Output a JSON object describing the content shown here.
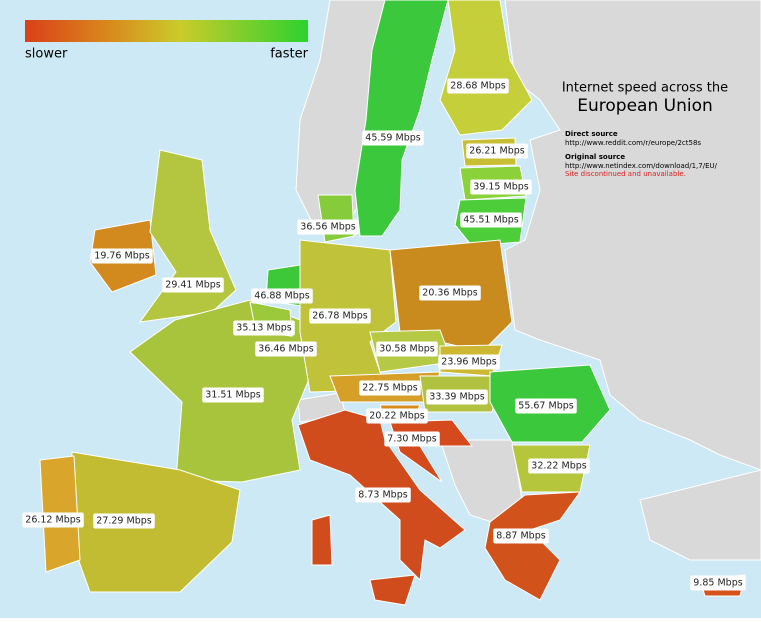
{
  "legend": {
    "low": "slower",
    "high": "faster"
  },
  "title": {
    "line1": "Internet speed across the",
    "line2": "European Union"
  },
  "sources": {
    "direct_heading": "Direct source",
    "direct_url": "http://www.reddit.com/r/europe/2ct58s",
    "original_heading": "Original source",
    "original_url": "http://www.netindex.com/download/1,7/EU/",
    "note": "Site discontinued and unavailable."
  },
  "labels": [
    "28.68 Mbps",
    "45.59 Mbps",
    "26.21 Mbps",
    "39.15 Mbps",
    "45.51 Mbps",
    "36.56 Mbps",
    "19.76 Mbps",
    "29.41 Mbps",
    "46.88 Mbps",
    "20.36 Mbps",
    "26.78 Mbps",
    "35.13 Mbps",
    "36.46 Mbps",
    "30.58 Mbps",
    "23.96 Mbps",
    "22.75 Mbps",
    "33.39 Mbps",
    "55.67 Mbps",
    "31.51 Mbps",
    "20.22 Mbps",
    "7.30 Mbps",
    "32.22 Mbps",
    "8.73 Mbps",
    "8.87 Mbps",
    "26.12 Mbps",
    "27.29 Mbps",
    "9.85 Mbps"
  ]
}
